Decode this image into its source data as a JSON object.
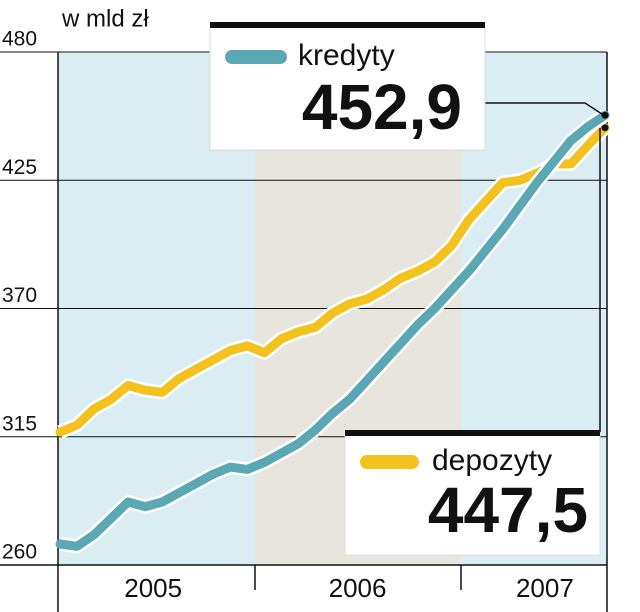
{
  "chart_data": {
    "type": "line",
    "title": "w mld zł",
    "categories": [
      null,
      null,
      null,
      null,
      null,
      "2005",
      null,
      null,
      null,
      null,
      null,
      null,
      null,
      null,
      null,
      null,
      null,
      "2006",
      null,
      null,
      null,
      null,
      null,
      null,
      null,
      null,
      null,
      null,
      "2007",
      null,
      null,
      null,
      null
    ],
    "series": [
      {
        "name": "kredyty",
        "color": "#5ba7b3",
        "values": [
          269,
          268,
          273,
          280,
          287,
          285,
          287,
          291,
          295,
          299,
          302,
          301,
          304,
          308,
          312,
          318,
          325,
          331,
          339,
          347,
          355,
          363,
          370,
          378,
          386,
          395,
          404,
          414,
          424,
          433,
          442,
          448,
          452.9
        ],
        "value_labels": [
          null,
          null,
          null,
          null,
          null,
          null,
          null,
          null,
          null,
          null,
          null,
          null,
          null,
          null,
          null,
          null,
          null,
          null,
          null,
          null,
          null,
          null,
          null,
          null,
          null,
          null,
          null,
          null,
          null,
          null,
          null,
          null,
          "452,9"
        ]
      },
      {
        "name": "depozyty",
        "color": "#f4c21f",
        "values": [
          317,
          320,
          327,
          331,
          337,
          335,
          334,
          340,
          344,
          348,
          352,
          354,
          351,
          357,
          360,
          362,
          368,
          372,
          374,
          378,
          383,
          386,
          390,
          397,
          408,
          416,
          424,
          425,
          428,
          432,
          432,
          440,
          447.5
        ],
        "value_labels": [
          null,
          null,
          null,
          null,
          null,
          null,
          null,
          null,
          null,
          null,
          null,
          null,
          null,
          null,
          null,
          null,
          null,
          null,
          null,
          null,
          null,
          null,
          null,
          null,
          null,
          null,
          null,
          null,
          null,
          null,
          null,
          null,
          "447,5"
        ]
      }
    ],
    "ylim": [
      260,
      480
    ],
    "yticks": [
      260,
      315,
      370,
      425,
      480
    ],
    "grid": true
  }
}
